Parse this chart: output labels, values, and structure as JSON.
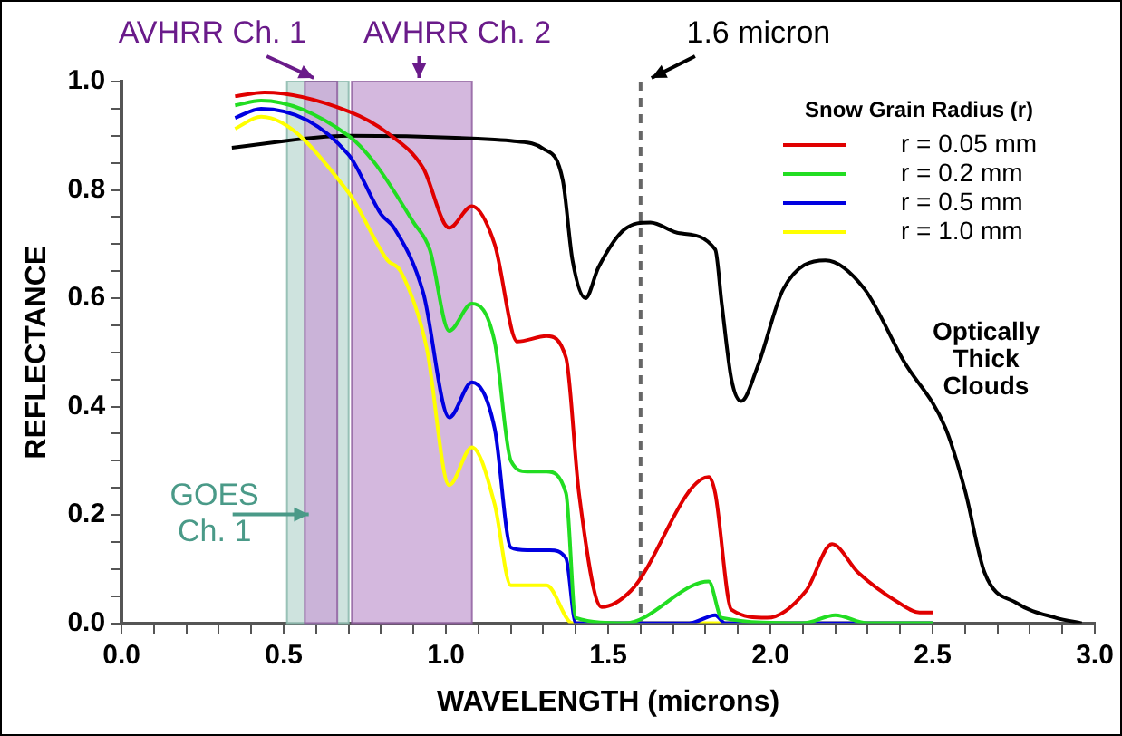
{
  "chart_data": {
    "type": "line",
    "xlabel": "WAVELENGTH (microns)",
    "ylabel": "REFLECTANCE",
    "legend_title": "Snow Grain Radius (r)",
    "xlim": [
      0,
      3.0
    ],
    "ylim": [
      0,
      1.0
    ],
    "xticks": [
      {
        "value": 0,
        "label": "0.0"
      },
      {
        "value": 0.1,
        "label": null
      },
      {
        "value": 0.2,
        "label": null
      },
      {
        "value": 0.3,
        "label": null
      },
      {
        "value": 0.4,
        "label": null
      },
      {
        "value": 0.5,
        "label": "0.5"
      },
      {
        "value": 0.6,
        "label": null
      },
      {
        "value": 0.7,
        "label": null
      },
      {
        "value": 0.8,
        "label": null
      },
      {
        "value": 0.9,
        "label": null
      },
      {
        "value": 1.0,
        "label": "1.0"
      },
      {
        "value": 1.1,
        "label": null
      },
      {
        "value": 1.2,
        "label": null
      },
      {
        "value": 1.3,
        "label": null
      },
      {
        "value": 1.4,
        "label": null
      },
      {
        "value": 1.5,
        "label": "1.5"
      },
      {
        "value": 1.6,
        "label": null
      },
      {
        "value": 1.7,
        "label": null
      },
      {
        "value": 1.8,
        "label": null
      },
      {
        "value": 1.9,
        "label": null
      },
      {
        "value": 2.0,
        "label": "2.0"
      },
      {
        "value": 2.1,
        "label": null
      },
      {
        "value": 2.2,
        "label": null
      },
      {
        "value": 2.3,
        "label": null
      },
      {
        "value": 2.4,
        "label": null
      },
      {
        "value": 2.5,
        "label": "2.5"
      },
      {
        "value": 2.6,
        "label": null
      },
      {
        "value": 2.7,
        "label": null
      },
      {
        "value": 2.8,
        "label": null
      },
      {
        "value": 2.9,
        "label": null
      },
      {
        "value": 3.0,
        "label": "3.0"
      }
    ],
    "yticks": [
      {
        "value": 0,
        "label": "0.0"
      },
      {
        "value": 0.05,
        "label": null
      },
      {
        "value": 0.1,
        "label": null
      },
      {
        "value": 0.15,
        "label": null
      },
      {
        "value": 0.2,
        "label": "0.2"
      },
      {
        "value": 0.25,
        "label": null
      },
      {
        "value": 0.3,
        "label": null
      },
      {
        "value": 0.35,
        "label": null
      },
      {
        "value": 0.4,
        "label": "0.4"
      },
      {
        "value": 0.45,
        "label": null
      },
      {
        "value": 0.5,
        "label": null
      },
      {
        "value": 0.55,
        "label": null
      },
      {
        "value": 0.6,
        "label": "0.6"
      },
      {
        "value": 0.65,
        "label": null
      },
      {
        "value": 0.7,
        "label": null
      },
      {
        "value": 0.75,
        "label": null
      },
      {
        "value": 0.8,
        "label": "0.8"
      },
      {
        "value": 0.85,
        "label": null
      },
      {
        "value": 0.9,
        "label": null
      },
      {
        "value": 0.95,
        "label": null
      },
      {
        "value": 1.0,
        "label": "1.0"
      }
    ],
    "legend": "top right",
    "marker": "none",
    "grid": false,
    "series": [
      {
        "name": "r = 0.05 mm",
        "color": "#e00000",
        "x": [
          0.35,
          0.44,
          0.7,
          0.82,
          0.93,
          1.01,
          1.08,
          1.15,
          1.22,
          1.31,
          1.37,
          1.41,
          1.48,
          1.57,
          1.81,
          1.83,
          1.88,
          1.99,
          2.11,
          2.19,
          2.27,
          2.39,
          2.46,
          2.5
        ],
        "values": [
          0.973,
          0.98,
          0.945,
          0.905,
          0.84,
          0.73,
          0.77,
          0.7,
          0.52,
          0.53,
          0.49,
          0.24,
          0.03,
          0.06,
          0.27,
          0.24,
          0.025,
          0.01,
          0.06,
          0.146,
          0.094,
          0.04,
          0.02,
          0.02
        ]
      },
      {
        "name": "r = 0.2 mm",
        "color": "#22dd22",
        "x": [
          0.35,
          0.43,
          0.7,
          0.78,
          0.9,
          0.95,
          1.01,
          1.08,
          1.15,
          1.2,
          1.25,
          1.31,
          1.37,
          1.4,
          1.55,
          1.81,
          1.85,
          2.1,
          2.2,
          2.3,
          2.5
        ],
        "values": [
          0.956,
          0.965,
          0.9,
          0.85,
          0.74,
          0.69,
          0.54,
          0.59,
          0.52,
          0.3,
          0.28,
          0.28,
          0.24,
          0.01,
          0.0,
          0.077,
          0.01,
          0.0,
          0.015,
          0.0,
          0.0
        ]
      },
      {
        "name": "r = 0.5 mm",
        "color": "#0000e0",
        "x": [
          0.35,
          0.43,
          0.7,
          0.8,
          0.84,
          0.93,
          1.01,
          1.08,
          1.15,
          1.2,
          1.25,
          1.32,
          1.37,
          1.4,
          1.75,
          1.83,
          1.86,
          2.5
        ],
        "values": [
          0.933,
          0.95,
          0.865,
          0.755,
          0.73,
          0.61,
          0.38,
          0.445,
          0.36,
          0.14,
          0.135,
          0.135,
          0.12,
          0.0,
          0.0,
          0.015,
          0.0,
          0.0
        ]
      },
      {
        "name": "r = 1.0 mm",
        "color": "#ffff00",
        "x": [
          0.35,
          0.43,
          0.7,
          0.82,
          0.86,
          0.94,
          1.01,
          1.08,
          1.15,
          1.2,
          1.25,
          1.31,
          1.39,
          2.5
        ],
        "values": [
          0.913,
          0.935,
          0.795,
          0.67,
          0.65,
          0.51,
          0.255,
          0.325,
          0.22,
          0.07,
          0.07,
          0.07,
          0.0,
          0.0
        ]
      },
      {
        "color": "#000000",
        "x": [
          0.34,
          0.7,
          1.15,
          1.21,
          1.3,
          1.36,
          1.39,
          1.43,
          1.47,
          1.55,
          1.63,
          1.72,
          1.83,
          1.85,
          1.88,
          1.91,
          1.96,
          2.04,
          2.17,
          2.29,
          2.41,
          2.54,
          2.6,
          2.66,
          2.76,
          2.88,
          2.96
        ],
        "values": [
          0.878,
          0.9,
          0.893,
          0.89,
          0.876,
          0.818,
          0.67,
          0.6,
          0.657,
          0.727,
          0.74,
          0.72,
          0.69,
          0.59,
          0.45,
          0.41,
          0.473,
          0.617,
          0.67,
          0.617,
          0.485,
          0.36,
          0.245,
          0.094,
          0.037,
          0.01,
          0.0
        ]
      }
    ],
    "bands": [
      {
        "axis": "x",
        "from": 0.51,
        "to": 0.7,
        "label": "GOES\nCh. 1",
        "color": "#c5ded8"
      },
      {
        "axis": "x",
        "from": 0.565,
        "to": 0.665,
        "label": "AVHRR Ch. 1",
        "color": "#c9a6d6"
      },
      {
        "axis": "x",
        "from": 0.71,
        "to": 1.08,
        "label": "AVHRR Ch. 2",
        "color": "#c9a6d6"
      }
    ],
    "ref_lines": [
      {
        "axis": "x",
        "value": 1.6,
        "label": "1.6 micron",
        "color": "#666666",
        "line_style": "dashed"
      }
    ],
    "annotations": [
      "Optically\nThick\nClouds"
    ]
  }
}
